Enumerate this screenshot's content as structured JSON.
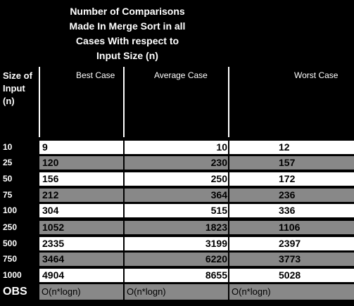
{
  "title_lines": [
    "Number of Comparisons",
    "Made In Merge Sort in all",
    "Cases With respect to",
    "Input Size (n)"
  ],
  "headers": {
    "size": "Size of Input (n)",
    "best": "Best Case",
    "average": "Average  Case",
    "worst": "Worst Case"
  },
  "rows": [
    {
      "n": "10",
      "best": "9",
      "average": "10",
      "worst": "12"
    },
    {
      "n": "25",
      "best": "120",
      "average": "230",
      "worst": "157"
    },
    {
      "n": "50",
      "best": "156",
      "average": "250",
      "worst": "172"
    },
    {
      "n": "75",
      "best": "212",
      "average": "364",
      "worst": "236"
    },
    {
      "n": "100",
      "best": "304",
      "average": "515",
      "worst": "336"
    },
    {
      "n": "250",
      "best": "1052",
      "average": "1823",
      "worst": "1106"
    },
    {
      "n": "500",
      "best": "2335",
      "average": "3199",
      "worst": "2397"
    },
    {
      "n": "750",
      "best": "3464",
      "average": "6220",
      "worst": "3773"
    },
    {
      "n": "1000",
      "best": "4904",
      "average": "8655",
      "worst": "5028"
    }
  ],
  "obs": {
    "label": "OBS",
    "best": "O(n*logn)",
    "average": "O(n*logn)",
    "worst": "O(n*logn)"
  }
}
